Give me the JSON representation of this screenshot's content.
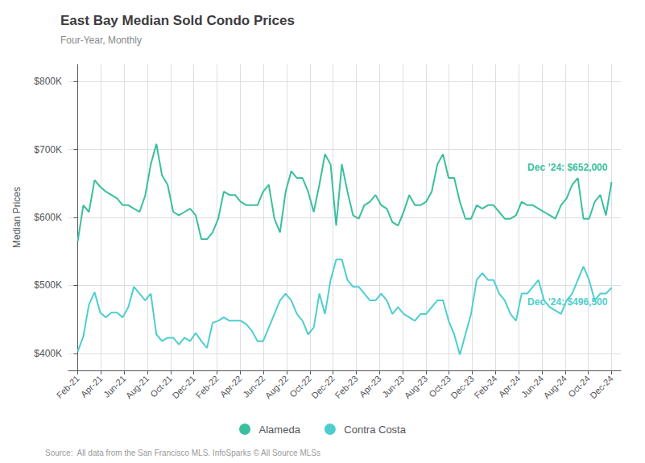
{
  "chart_data": {
    "type": "line",
    "title": "East Bay Median Sold Condo Prices",
    "subtitle": "Four-Year, Monthly",
    "ylabel": "Median Prices",
    "source": "Source:  All data from the San Francisco MLS. InfoSparks © All Source MLSs",
    "x": [
      0,
      0.242105,
      0.484211,
      0.726316,
      0.968421,
      1.210526,
      1.452632,
      1.694737,
      1.936842,
      2.178947,
      2.421053,
      2.663158,
      2.905263,
      3.147368,
      3.389474,
      3.631579,
      3.873684,
      4.115789,
      4.357895,
      4.6,
      4.842105,
      5.084211,
      5.326316,
      5.568421,
      5.810526,
      6.052632,
      6.294737,
      6.536842,
      6.778947,
      7.021053,
      7.263158,
      7.505263,
      7.747368,
      7.989474,
      8.231579,
      8.473684,
      8.715789,
      8.957895,
      9.2,
      9.442105,
      9.684211,
      9.926316,
      10.168421,
      10.410526,
      10.652632,
      10.894737,
      11.136842,
      11.378947,
      11.621053,
      11.863158,
      12.105263,
      12.347368,
      12.589474,
      12.831579,
      13.073684,
      13.315789,
      13.557895,
      13.8,
      14.042105,
      14.284211,
      14.526316,
      14.768421,
      15.010526,
      15.252632,
      15.494737,
      15.736842,
      15.978947,
      16.221053,
      16.463158,
      16.705263,
      16.947368,
      17.189474,
      17.431579,
      17.673684,
      17.915789,
      18.157895,
      18.4,
      18.642105,
      18.884211,
      19.126316,
      19.368421,
      19.610526,
      19.852632,
      20.094737,
      20.336842,
      20.578947,
      20.821053,
      21.063158,
      21.305263,
      21.547368,
      21.789474,
      22.031579,
      22.273684,
      22.515789,
      22.757895,
      23
    ],
    "xlim": [
      -0.4,
      23.4
    ],
    "xticks": [
      {
        "value": 0,
        "label": "Feb-21"
      },
      {
        "value": 1,
        "label": "Apr-21"
      },
      {
        "value": 2,
        "label": "Jun-21"
      },
      {
        "value": 3,
        "label": "Aug-21"
      },
      {
        "value": 4,
        "label": "Oct-21"
      },
      {
        "value": 5,
        "label": "Dec-21"
      },
      {
        "value": 6,
        "label": "Feb-22"
      },
      {
        "value": 7,
        "label": "Apr-22"
      },
      {
        "value": 8,
        "label": "Jun-22"
      },
      {
        "value": 9,
        "label": "Aug-22"
      },
      {
        "value": 10,
        "label": "Oct-22"
      },
      {
        "value": 11,
        "label": "Dec-22"
      },
      {
        "value": 12,
        "label": "Feb-23"
      },
      {
        "value": 13,
        "label": "Apr-23"
      },
      {
        "value": 14,
        "label": "Jun-23"
      },
      {
        "value": 15,
        "label": "Aug-23"
      },
      {
        "value": 16,
        "label": "Oct-23"
      },
      {
        "value": 17,
        "label": "Dec-23"
      },
      {
        "value": 18,
        "label": "Feb-24"
      },
      {
        "value": 19,
        "label": "Apr-24"
      },
      {
        "value": 20,
        "label": "Jun-24"
      },
      {
        "value": 21,
        "label": "Aug-24"
      },
      {
        "value": 22,
        "label": "Oct-24"
      },
      {
        "value": 23,
        "label": "Dec-24"
      }
    ],
    "ylim": [
      375000,
      825000
    ],
    "yticks": [
      {
        "value": 400000,
        "label": "$400K"
      },
      {
        "value": 500000,
        "label": "$500K"
      },
      {
        "value": 600000,
        "label": "$600K"
      },
      {
        "value": 700000,
        "label": "$700K"
      },
      {
        "value": 800000,
        "label": "$800K"
      }
    ],
    "grid": true,
    "legend": "bottom",
    "series": [
      {
        "name": "Alameda",
        "color": "#3abf9e",
        "marker": "circle",
        "annotation": "Dec ’24: $652,000",
        "values": [
          565000,
          618000,
          608000,
          655000,
          645000,
          638000,
          633000,
          628000,
          618000,
          618000,
          613000,
          608000,
          632000,
          678000,
          708000,
          662000,
          648000,
          608000,
          603000,
          608000,
          613000,
          603000,
          568000,
          568000,
          578000,
          598000,
          638000,
          633000,
          633000,
          623000,
          618000,
          618000,
          618000,
          638000,
          648000,
          598000,
          578000,
          638000,
          668000,
          658000,
          658000,
          638000,
          608000,
          648000,
          693000,
          678000,
          588000,
          678000,
          638000,
          603000,
          598000,
          618000,
          623000,
          633000,
          618000,
          613000,
          593000,
          588000,
          608000,
          633000,
          618000,
          618000,
          623000,
          638000,
          678000,
          693000,
          658000,
          658000,
          623000,
          598000,
          598000,
          618000,
          613000,
          618000,
          618000,
          608000,
          598000,
          598000,
          603000,
          623000,
          618000,
          618000,
          613000,
          608000,
          603000,
          598000,
          618000,
          628000,
          648000,
          658000,
          598000,
          598000,
          623000,
          633000,
          603000,
          652000
        ]
      },
      {
        "name": "Contra Costa",
        "color": "#4ecece",
        "marker": "circle",
        "annotation": "Dec ’24: $496,500",
        "values": [
          403000,
          425000,
          472000,
          490000,
          460000,
          453000,
          460000,
          460000,
          453000,
          468000,
          498000,
          488000,
          478000,
          488000,
          428000,
          418000,
          423000,
          423000,
          413000,
          423000,
          418000,
          430000,
          418000,
          408000,
          445000,
          448000,
          453000,
          448000,
          448000,
          448000,
          443000,
          433000,
          418000,
          418000,
          438000,
          458000,
          478000,
          488000,
          478000,
          458000,
          448000,
          428000,
          438000,
          488000,
          458000,
          508000,
          538000,
          538000,
          508000,
          498000,
          498000,
          488000,
          478000,
          478000,
          488000,
          478000,
          458000,
          468000,
          458000,
          453000,
          448000,
          458000,
          458000,
          468000,
          478000,
          478000,
          448000,
          428000,
          398000,
          428000,
          458000,
          508000,
          518000,
          508000,
          508000,
          488000,
          478000,
          458000,
          448000,
          488000,
          488000,
          498000,
          508000,
          478000,
          468000,
          463000,
          458000,
          478000,
          488000,
          508000,
          528000,
          508000,
          478000,
          488000,
          488000,
          496500
        ]
      }
    ]
  }
}
